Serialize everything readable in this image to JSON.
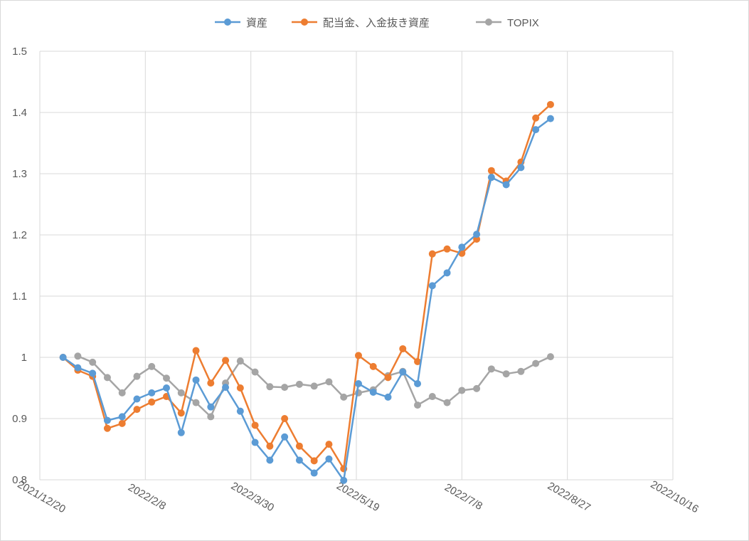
{
  "chart_data": {
    "type": "line",
    "title": "",
    "xlabel": "",
    "ylabel": "",
    "grid": true,
    "legend_position": "top",
    "xlim": [
      "2021-12-20",
      "2022-10-16"
    ],
    "x_ticks": [
      "2021/12/20",
      "2022/2/8",
      "2022/3/30",
      "2022/5/19",
      "2022/7/8",
      "2022/8/27",
      "2022/10/16"
    ],
    "ylim": [
      0.8,
      1.5
    ],
    "y_ticks": [
      0.8,
      0.9,
      1,
      1.1,
      1.2,
      1.3,
      1.4,
      1.5
    ],
    "y_tick_labels": [
      "0.8",
      "0.9",
      "1",
      "1.1",
      "1.2",
      "1.3",
      "1.4",
      "1.5"
    ],
    "x": [
      "2021-12-31",
      "2022-01-07",
      "2022-01-14",
      "2022-01-21",
      "2022-01-28",
      "2022-02-04",
      "2022-02-11",
      "2022-02-18",
      "2022-02-25",
      "2022-03-04",
      "2022-03-11",
      "2022-03-18",
      "2022-03-25",
      "2022-04-01",
      "2022-04-08",
      "2022-04-15",
      "2022-04-22",
      "2022-04-29",
      "2022-05-06",
      "2022-05-13",
      "2022-05-20",
      "2022-05-27",
      "2022-06-03",
      "2022-06-10",
      "2022-06-17",
      "2022-06-24",
      "2022-07-01",
      "2022-07-08",
      "2022-07-15",
      "2022-07-22",
      "2022-07-29",
      "2022-08-05",
      "2022-08-12",
      "2022-08-19"
    ],
    "series": [
      {
        "name": "資産",
        "color": "#5b9bd5",
        "values": [
          1.0,
          0.983,
          0.974,
          0.897,
          0.903,
          0.932,
          0.942,
          0.95,
          0.877,
          0.963,
          0.919,
          0.951,
          0.912,
          0.861,
          0.832,
          0.87,
          0.832,
          0.811,
          0.834,
          0.799,
          0.957,
          0.943,
          0.935,
          0.976,
          0.957,
          1.117,
          1.138,
          1.18,
          1.201,
          1.294,
          1.282,
          1.31,
          1.372,
          1.39
        ]
      },
      {
        "name": "配当金、入金抜き資産",
        "color": "#ed7d31",
        "values": [
          1.0,
          0.979,
          0.969,
          0.884,
          0.892,
          0.915,
          0.927,
          0.936,
          0.909,
          1.011,
          0.958,
          0.995,
          0.95,
          0.889,
          0.855,
          0.9,
          0.855,
          0.831,
          0.858,
          0.818,
          1.003,
          0.985,
          0.967,
          1.014,
          0.993,
          1.169,
          1.177,
          1.17,
          1.193,
          1.305,
          1.288,
          1.319,
          1.391,
          1.413
        ]
      },
      {
        "name": "TOPIX",
        "color": "#a5a5a5",
        "values": [
          null,
          1.002,
          0.992,
          0.967,
          0.942,
          0.969,
          0.985,
          0.966,
          0.942,
          0.926,
          0.903,
          0.958,
          0.994,
          0.976,
          0.952,
          0.951,
          0.956,
          0.953,
          0.96,
          0.935,
          0.942,
          0.947,
          0.97,
          0.977,
          0.922,
          0.936,
          0.926,
          0.946,
          0.949,
          0.981,
          0.973,
          0.977,
          0.99,
          1.001
        ]
      }
    ]
  }
}
